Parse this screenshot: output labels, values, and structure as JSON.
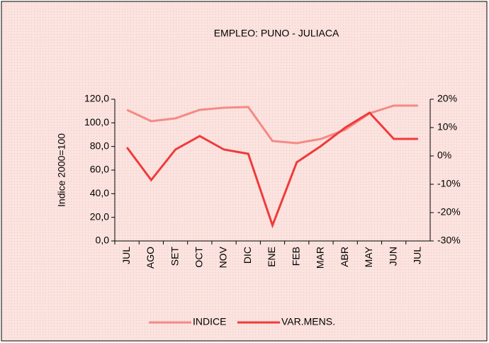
{
  "chart_data": {
    "type": "line",
    "title": "EMPLEO: PUNO - JULIACA",
    "y_label": "Indice 2000=100",
    "categories": [
      "JUL",
      "AGO",
      "SET",
      "OCT",
      "NOV",
      "DIC",
      "ENE",
      "FEB",
      "MAR",
      "ABR",
      "MAY",
      "JUN",
      "JUL"
    ],
    "series": [
      {
        "name": "INDICE",
        "color": "#f48a84",
        "values": [
          111,
          101.4,
          103.8,
          111,
          112.8,
          113.4,
          84.6,
          82.8,
          86.4,
          94.2,
          108,
          114.6,
          114.6
        ]
      },
      {
        "name": "VAR.MENS.",
        "color": "#f03a3a",
        "axis": "y2",
        "values": [
          3,
          -8.5,
          2.25,
          7,
          2.25,
          0.75,
          -24.5,
          -2.25,
          3.5,
          10,
          15.25,
          6,
          6
        ]
      }
    ],
    "ylim": [
      0,
      120
    ],
    "yticks": [
      {
        "value": 0,
        "label": "0,0"
      },
      {
        "value": 20,
        "label": "20,0"
      },
      {
        "value": 40,
        "label": "40,0"
      },
      {
        "value": 60,
        "label": "60,0"
      },
      {
        "value": 80,
        "label": "80,0"
      },
      {
        "value": 100,
        "label": "100,0"
      },
      {
        "value": 120,
        "label": "120,0"
      }
    ],
    "y2lim": [
      -30,
      20
    ],
    "y2ticks": [
      {
        "value": -30,
        "label": "-30%"
      },
      {
        "value": -20,
        "label": "-20%"
      },
      {
        "value": -10,
        "label": "-10%"
      },
      {
        "value": 0,
        "label": "0%"
      },
      {
        "value": 10,
        "label": "10%"
      },
      {
        "value": 20,
        "label": "20%"
      }
    ],
    "legend": "bottom"
  }
}
